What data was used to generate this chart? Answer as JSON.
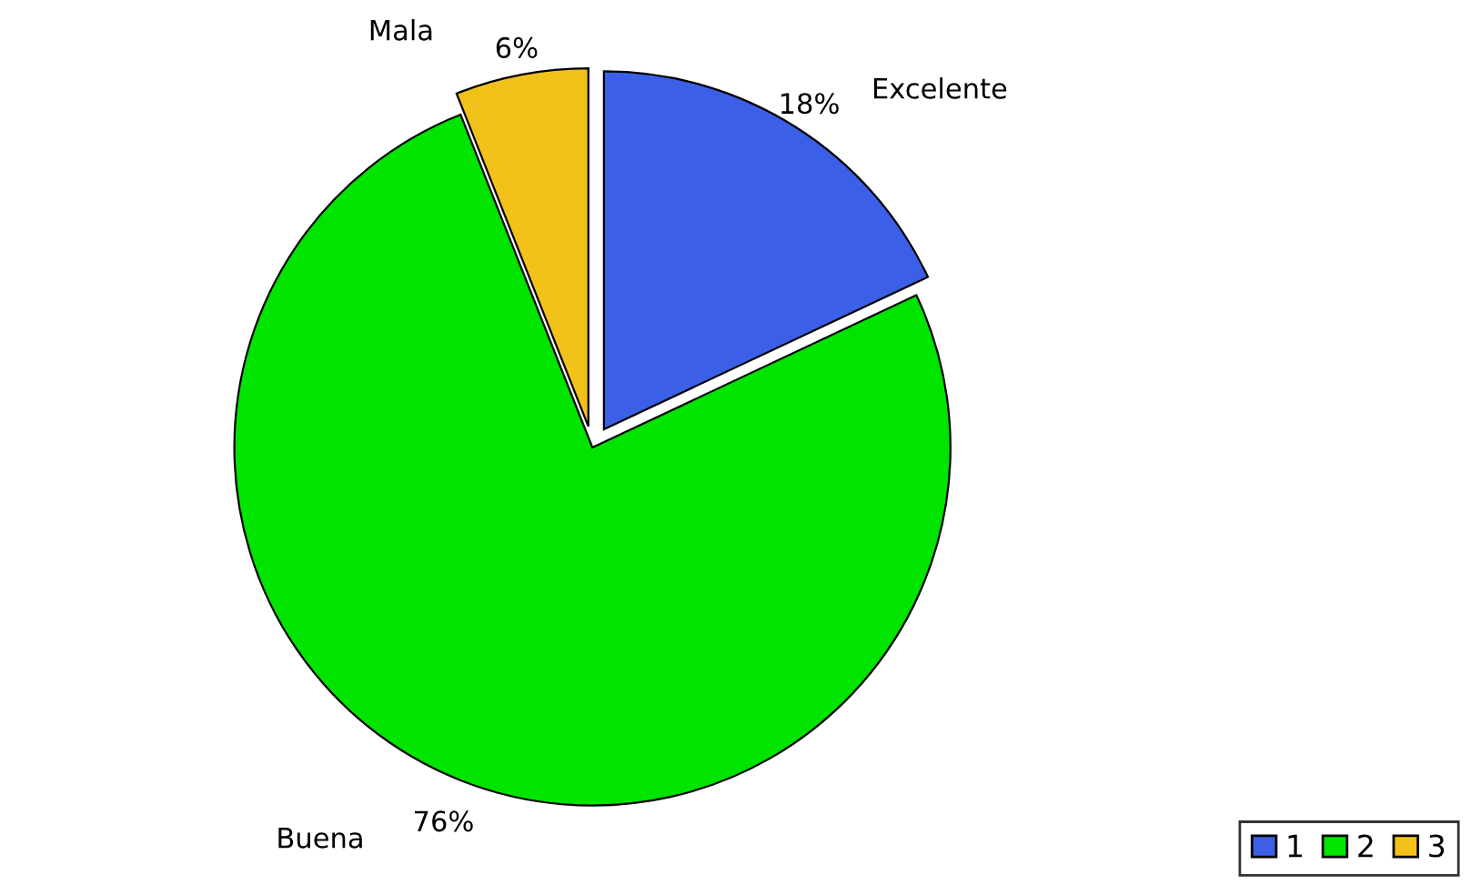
{
  "chart_data": {
    "type": "pie",
    "categories": [
      "1",
      "2",
      "3"
    ],
    "values": [
      18,
      76,
      6
    ],
    "colors": [
      "#3b5fe6",
      "#00e400",
      "#f2c21a"
    ],
    "value_labels": [
      "18%",
      "76%",
      "6%"
    ],
    "annotations": [
      {
        "text": "Excelente",
        "x": "1"
      },
      {
        "text": "Buena",
        "x": "2"
      },
      {
        "text": "Mala",
        "x": "3"
      }
    ],
    "legend": "bottom right"
  }
}
